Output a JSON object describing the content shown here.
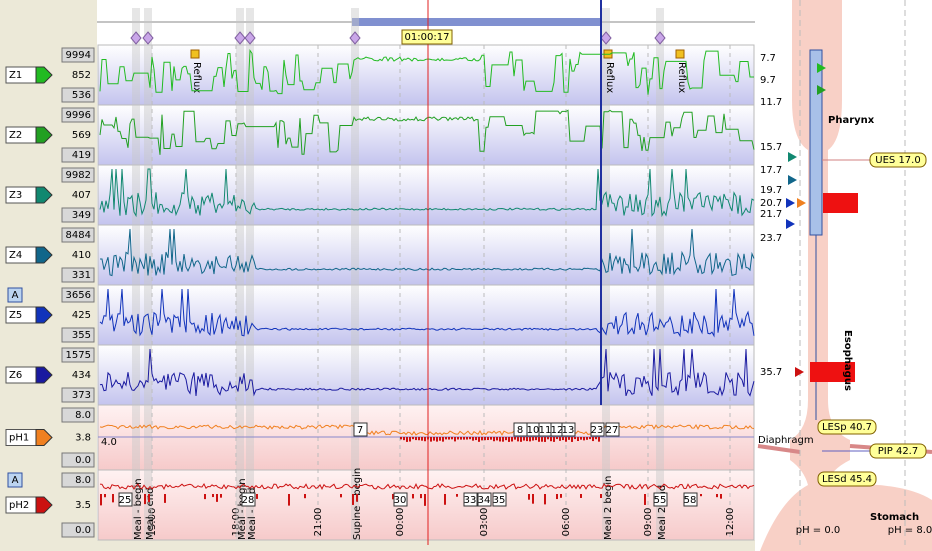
{
  "cursor_time": "01:00:17",
  "button_label": "A",
  "channels": [
    {
      "name": "Z1",
      "max": "9994",
      "value": "852",
      "min": "536",
      "color": "#22bb22"
    },
    {
      "name": "Z2",
      "max": "9996",
      "value": "569",
      "min": "419",
      "color": "#22a022"
    },
    {
      "name": "Z3",
      "max": "9982",
      "value": "407",
      "min": "349",
      "color": "#118870"
    },
    {
      "name": "Z4",
      "max": "8484",
      "value": "410",
      "min": "331",
      "color": "#11668a"
    },
    {
      "name": "Z5",
      "max": "3656",
      "value": "425",
      "min": "355",
      "color": "#1133bb"
    },
    {
      "name": "Z6",
      "max": "1575",
      "value": "434",
      "min": "373",
      "color": "#1a1aa0"
    },
    {
      "name": "pH1",
      "max": "8.0",
      "value": "3.8",
      "min": "0.0",
      "color": "#f08020"
    },
    {
      "name": "pH2",
      "max": "8.0",
      "value": "3.5",
      "min": "0.0",
      "color": "#cc1111"
    }
  ],
  "time_axis": [
    "15:00",
    "18:00",
    "21:00",
    "00:00",
    "03:00",
    "06:00",
    "09:00",
    "12:00"
  ],
  "events": [
    "Meal - begin",
    "Meal - end",
    "Meal - begin",
    "Meal - end",
    "Supine - begin",
    "Meal 2 begin",
    "Meal 2 end"
  ],
  "reflux_label": "Reflux",
  "ph1_reference": "4.0",
  "ph1_episodes": [
    "7",
    "8",
    "10",
    "11",
    "12",
    "13",
    "23",
    "27"
  ],
  "ph2_episodes": [
    "25",
    "28",
    "30",
    "33",
    "34",
    "35",
    "55",
    "58"
  ],
  "anatomy": {
    "regions": [
      "Pharynx",
      "Esophagus",
      "Stomach"
    ],
    "diaphragm": "Diaphragm",
    "markers": [
      "UES 17.0",
      "LESp 40.7",
      "PIP 42.7",
      "LESd 45.4"
    ],
    "sensor_positions": [
      "7.7",
      "9.7",
      "11.7",
      "15.7",
      "17.7",
      "19.7",
      "20.7",
      "21.7",
      "23.7",
      "35.7"
    ],
    "ph_scale": [
      "pH = 0.0",
      "pH = 8.0"
    ]
  }
}
